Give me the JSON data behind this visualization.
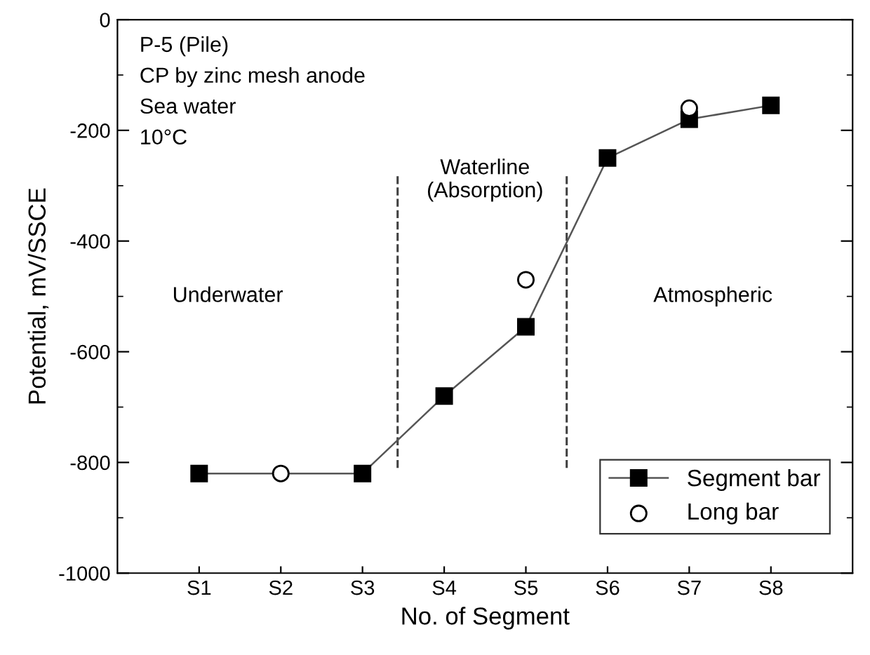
{
  "chart_data": {
    "type": "line",
    "xlabel": "No. of Segment",
    "ylabel": "Potential, mV/SSCE",
    "categories": [
      "S1",
      "S2",
      "S3",
      "S4",
      "S5",
      "S6",
      "S7",
      "S8"
    ],
    "series": [
      {
        "name": "Segment bar",
        "color": "#000000",
        "marker": "square",
        "line_style": "solid",
        "values": [
          -820,
          null,
          -820,
          -680,
          -555,
          -250,
          -180,
          -155
        ]
      },
      {
        "name": "Long bar",
        "type": "scatter",
        "color": "#ffffff",
        "marker": "circle",
        "values": [
          null,
          -820,
          null,
          null,
          -470,
          null,
          -160,
          null
        ]
      }
    ],
    "ylim": [
      -1000,
      0
    ],
    "yticks": [
      -1000,
      -800,
      -600,
      -400,
      -200,
      0
    ],
    "annotations": [
      "P-5 (Pile)\nCP by zinc mesh anode\nSea water\n10°C",
      "Underwater",
      "Waterline\n(Absorption)",
      "Atmospheric"
    ],
    "legend": "bottom right",
    "grid": false
  }
}
